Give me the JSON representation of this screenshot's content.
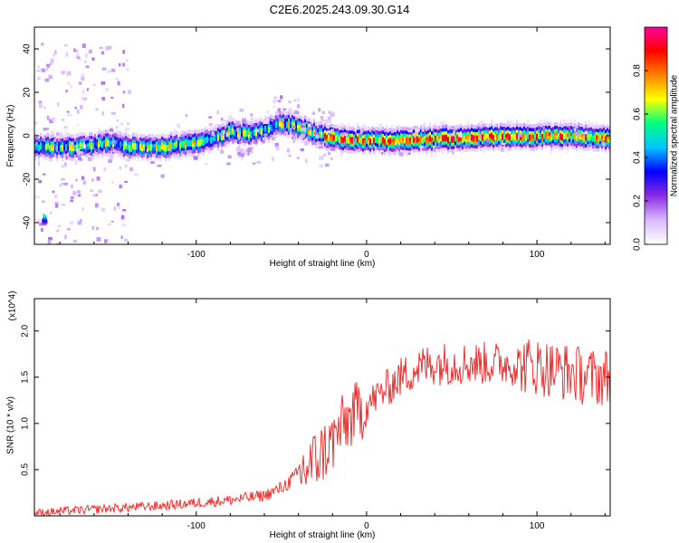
{
  "title": "C2E6.2025.243.09.30.G14",
  "colors": {
    "axis": "#000000",
    "snr_line": "#ee2222",
    "colormap": [
      "#ffffff",
      "#d8b8ff",
      "#8a2be2",
      "#0000ff",
      "#00c8ff",
      "#00ff80",
      "#ffff00",
      "#ff8000",
      "#ff0000",
      "#ff00a0"
    ]
  },
  "chart_data": [
    {
      "type": "heatmap",
      "xlabel": "Height of straight line (km)",
      "ylabel": "Frequency (Hz)",
      "xlim": [
        -195,
        143
      ],
      "ylim": [
        -50,
        50
      ],
      "xticks": [
        -100,
        0,
        100
      ],
      "yticks": [
        -40,
        -20,
        0,
        20,
        40
      ],
      "colorbar": {
        "label": "Normalized spectral amplitude",
        "range": [
          0.0,
          1.0
        ],
        "ticks": [
          0.0,
          0.2,
          0.4,
          0.6,
          0.8
        ]
      },
      "ridge": {
        "description_points_x": [
          -195,
          -170,
          -150,
          -140,
          -120,
          -100,
          -90,
          -80,
          -70,
          -60,
          -50,
          -40,
          -30,
          -20,
          0,
          20,
          50,
          80,
          100,
          120,
          143
        ],
        "frequency_hz": [
          -5,
          -5,
          -3,
          -5,
          -5,
          -3,
          -1,
          2,
          1,
          3,
          6,
          4,
          1,
          -1,
          -2,
          -2,
          -1,
          0,
          0,
          0,
          -1
        ]
      }
    },
    {
      "type": "line",
      "xlabel": "Height of straight line (km)",
      "ylabel": "SNR (10 * v/v)",
      "y_multiplier": "(x10^4)",
      "xlim": [
        -195,
        143
      ],
      "ylim": [
        0,
        2.35
      ],
      "xticks": [
        -100,
        0,
        100
      ],
      "yticks": [
        0.5,
        1.0,
        1.5,
        2.0
      ],
      "ytick_labels": [
        "0.5",
        "1.0",
        "1.5",
        "2.0"
      ],
      "series": [
        {
          "x": [
            -195,
            -180,
            -160,
            -140,
            -120,
            -100,
            -80,
            -60,
            -50,
            -40,
            -30,
            -20,
            -15,
            -10,
            0,
            10,
            20,
            30,
            40,
            60,
            80,
            100,
            110,
            120,
            130,
            143
          ],
          "y": [
            0.03,
            0.05,
            0.07,
            0.09,
            0.11,
            0.14,
            0.17,
            0.22,
            0.3,
            0.45,
            0.6,
            0.8,
            0.95,
            1.05,
            1.2,
            1.35,
            1.5,
            1.6,
            1.65,
            1.65,
            1.65,
            1.62,
            1.58,
            1.55,
            1.5,
            1.5
          ]
        }
      ]
    }
  ]
}
